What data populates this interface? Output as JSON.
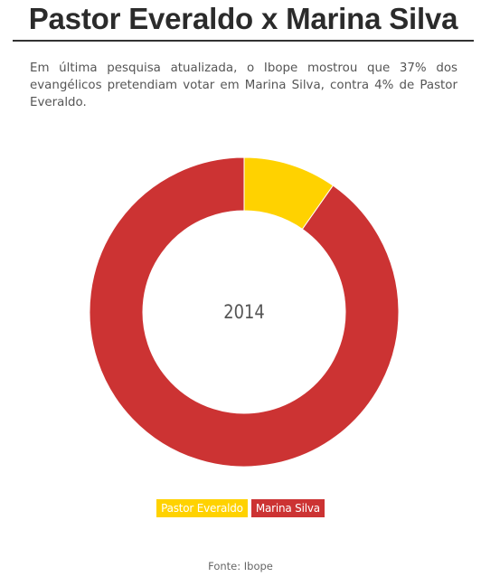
{
  "header": {
    "title": "Pastor Everaldo x Marina Silva"
  },
  "description": "Em última pesquisa atualizada, o Ibope mostrou que 37% dos evangélicos pretendiam votar em Marina Silva, contra 4% de Pastor Everaldo.",
  "center_label": "2014",
  "source": "Fonte: Ibope",
  "chart_data": {
    "type": "pie",
    "donut": true,
    "center_text": "2014",
    "series": [
      {
        "name": "Pastor Everaldo",
        "value": 4,
        "color": "#FFD200"
      },
      {
        "name": "Marina Silva",
        "value": 37,
        "color": "#CC3333"
      }
    ],
    "legend_position": "bottom"
  }
}
